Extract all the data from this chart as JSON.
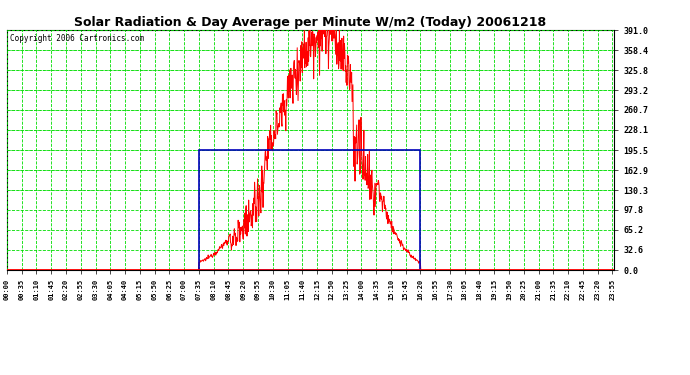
{
  "title": "Solar Radiation & Day Average per Minute W/m2 (Today) 20061218",
  "copyright": "Copyright 2006 Cartronics.com",
  "yticks": [
    0.0,
    32.6,
    65.2,
    97.8,
    130.3,
    162.9,
    195.5,
    228.1,
    260.7,
    293.2,
    325.8,
    358.4,
    391.0
  ],
  "ymax": 391.0,
  "ymin": 0.0,
  "bg_color": "#ffffff",
  "plot_bg_color": "#ffffff",
  "grid_color": "#00dd00",
  "solar_color": "#ff0000",
  "avg_box_color": "#0000bb",
  "sunrise_minute": 455,
  "sunset_minute": 980,
  "avg_value": 195.5,
  "peak_minute": 755,
  "peak_value": 391.0,
  "xtick_step": 35,
  "title_fontsize": 9,
  "tick_fontsize": 5,
  "copyright_fontsize": 5.5
}
